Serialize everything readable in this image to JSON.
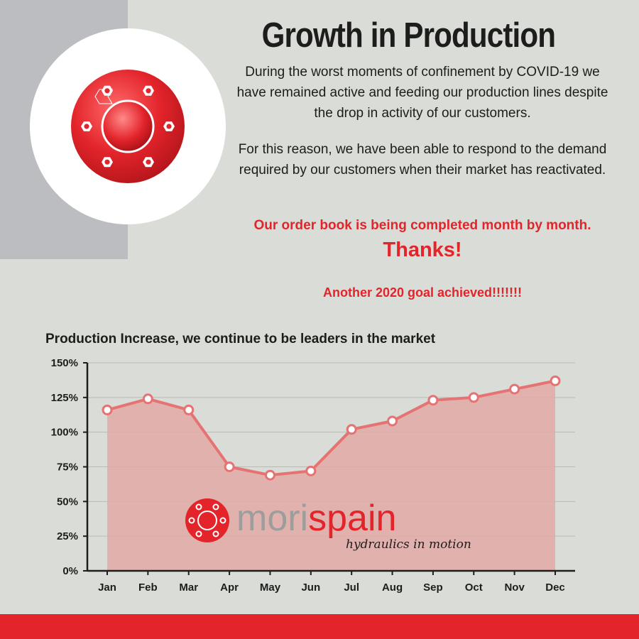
{
  "header": {
    "title": "Growth in Production",
    "paragraph1": "During the worst moments of confinement by COVID-19 we have remained active and feeding our production lines despite the drop in activity of our customers.",
    "paragraph2": "For this reason, we have been able to respond to the demand required by our customers when their market has reactivated.",
    "order_book": "Our order book is being completed month by month.",
    "thanks": "Thanks!",
    "goal": "Another 2020 goal achieved!!!!!!!"
  },
  "brand": {
    "name_part1": "mori",
    "name_part2": "spain",
    "tagline": "hydraulics in motion",
    "icon": "flange-logo-icon"
  },
  "colors": {
    "accent": "#e3242b",
    "line": "#e57373",
    "fill": "#e2aaa6",
    "background": "#dadcd7",
    "grey_block": "#bcbdc1"
  },
  "chart_data": {
    "type": "area",
    "title": "Production Increase, we continue to be leaders in the market",
    "categories": [
      "Jan",
      "Feb",
      "Mar",
      "Apr",
      "May",
      "Jun",
      "Jul",
      "Aug",
      "Sep",
      "Oct",
      "Nov",
      "Dec"
    ],
    "series": [
      {
        "name": "Production",
        "values": [
          116,
          124,
          116,
          75,
          69,
          72,
          102,
          108,
          123,
          125,
          131,
          137
        ]
      }
    ],
    "yticks": [
      "0%",
      "25%",
      "50%",
      "75%",
      "100%",
      "125%",
      "150%"
    ],
    "ylim": [
      0,
      150
    ],
    "grid": true,
    "xlabel": "",
    "ylabel": ""
  }
}
